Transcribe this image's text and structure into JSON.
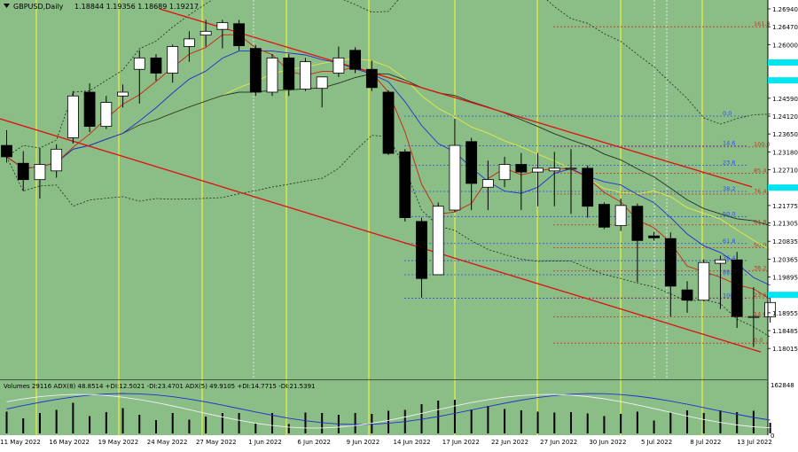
{
  "header": {
    "symbol": "GBPUSD,Daily",
    "ohlc": "1.18844 1.19356 1.18689 1.19217"
  },
  "indicator_header": "Volumes 29116  ADX(8) 48.8514 +DI:12.5021 -DI:23.4701  ADX(5) 49.9105 +DI:14.7715 -DI:21.5391",
  "colors": {
    "background": "#8bbd87",
    "panel_border": "#444444",
    "channel": "#e01010",
    "vline": "#f0f040",
    "bull": "#ffffff",
    "bear": "#000000",
    "price_badge": "#00e5ef",
    "fib_blue": "#3050e0",
    "fib_red": "#d03020",
    "fib_gray": "#5a7a9a"
  },
  "chart_data": {
    "type": "candlestick",
    "timeframe": "Daily",
    "price_axis": {
      "ticks": [
        1.2694,
        1.2647,
        1.26,
        1.2553,
        1.2506,
        1.2459,
        1.2412,
        1.2365,
        1.2318,
        1.2271,
        1.2224,
        1.2177,
        1.2131,
        1.2083,
        1.2036,
        1.1989,
        1.1942,
        1.1895,
        1.1848,
        1.1801
      ],
      "tick_labels": [
        "1.26940",
        "1.26470",
        "1.26000",
        "1.25530",
        "1.25060",
        "1.24590",
        "1.24120",
        "1.23650",
        "1.23180",
        "1.22710",
        "1.22240",
        "1.21775",
        "1.21305",
        "1.20835",
        "1.20365",
        "1.19895",
        "1.19425",
        "1.18955",
        "1.18485",
        "1.18015"
      ],
      "highlighted": [
        1.2553,
        1.2506,
        1.2224,
        1.1942
      ]
    },
    "date_axis": [
      "11 May 2022",
      "16 May 2022",
      "19 May 2022",
      "24 May 2022",
      "27 May 2022",
      "1 Jun 2022",
      "6 Jun 2022",
      "9 Jun 2022",
      "14 Jun 2022",
      "17 Jun 2022",
      "22 Jun 2022",
      "27 Jun 2022",
      "30 Jun 2022",
      "5 Jul 2022",
      "8 Jul 2022",
      "13 Jul 2022"
    ],
    "candles": [
      {
        "o": 1.2335,
        "h": 1.2375,
        "l": 1.229,
        "c": 1.2305
      },
      {
        "o": 1.2288,
        "h": 1.232,
        "l": 1.2215,
        "c": 1.2245
      },
      {
        "o": 1.2245,
        "h": 1.2328,
        "l": 1.2195,
        "c": 1.2285
      },
      {
        "o": 1.2268,
        "h": 1.2338,
        "l": 1.225,
        "c": 1.2325
      },
      {
        "o": 1.2355,
        "h": 1.2478,
        "l": 1.234,
        "c": 1.2465
      },
      {
        "o": 1.2475,
        "h": 1.2498,
        "l": 1.237,
        "c": 1.2385
      },
      {
        "o": 1.2385,
        "h": 1.2465,
        "l": 1.2378,
        "c": 1.2448
      },
      {
        "o": 1.2465,
        "h": 1.2495,
        "l": 1.2435,
        "c": 1.2475
      },
      {
        "o": 1.2535,
        "h": 1.2585,
        "l": 1.2445,
        "c": 1.2565
      },
      {
        "o": 1.2565,
        "h": 1.2575,
        "l": 1.2505,
        "c": 1.2525
      },
      {
        "o": 1.2525,
        "h": 1.26,
        "l": 1.25,
        "c": 1.2595
      },
      {
        "o": 1.2595,
        "h": 1.2635,
        "l": 1.2555,
        "c": 1.2615
      },
      {
        "o": 1.2625,
        "h": 1.2665,
        "l": 1.2595,
        "c": 1.2635
      },
      {
        "o": 1.264,
        "h": 1.2665,
        "l": 1.259,
        "c": 1.2658
      },
      {
        "o": 1.2655,
        "h": 1.2665,
        "l": 1.2585,
        "c": 1.2597
      },
      {
        "o": 1.259,
        "h": 1.2599,
        "l": 1.2465,
        "c": 1.2475
      },
      {
        "o": 1.2475,
        "h": 1.2575,
        "l": 1.2465,
        "c": 1.2565
      },
      {
        "o": 1.2565,
        "h": 1.2575,
        "l": 1.2465,
        "c": 1.2483
      },
      {
        "o": 1.2483,
        "h": 1.2565,
        "l": 1.2478,
        "c": 1.2555
      },
      {
        "o": 1.2485,
        "h": 1.2515,
        "l": 1.2435,
        "c": 1.2515
      },
      {
        "o": 1.2525,
        "h": 1.2595,
        "l": 1.2515,
        "c": 1.2565
      },
      {
        "o": 1.2585,
        "h": 1.2593,
        "l": 1.2525,
        "c": 1.2535
      },
      {
        "o": 1.2535,
        "h": 1.2558,
        "l": 1.2478,
        "c": 1.2487
      },
      {
        "o": 1.2475,
        "h": 1.248,
        "l": 1.231,
        "c": 1.2314
      },
      {
        "o": 1.2318,
        "h": 1.2325,
        "l": 1.2135,
        "c": 1.2145
      },
      {
        "o": 1.2135,
        "h": 1.2145,
        "l": 1.1935,
        "c": 1.1985
      },
      {
        "o": 1.1995,
        "h": 1.2185,
        "l": 1.1995,
        "c": 1.2175
      },
      {
        "o": 1.2165,
        "h": 1.2405,
        "l": 1.216,
        "c": 1.2335
      },
      {
        "o": 1.2345,
        "h": 1.2355,
        "l": 1.2165,
        "c": 1.2235
      },
      {
        "o": 1.2225,
        "h": 1.2295,
        "l": 1.2165,
        "c": 1.2245
      },
      {
        "o": 1.2245,
        "h": 1.2305,
        "l": 1.2225,
        "c": 1.2285
      },
      {
        "o": 1.2285,
        "h": 1.2315,
        "l": 1.2165,
        "c": 1.2265
      },
      {
        "o": 1.2265,
        "h": 1.2315,
        "l": 1.2175,
        "c": 1.2275
      },
      {
        "o": 1.2268,
        "h": 1.2318,
        "l": 1.2175,
        "c": 1.2275
      },
      {
        "o": 1.2275,
        "h": 1.2325,
        "l": 1.2155,
        "c": 1.2275
      },
      {
        "o": 1.2275,
        "h": 1.2282,
        "l": 1.2145,
        "c": 1.2175
      },
      {
        "o": 1.218,
        "h": 1.2185,
        "l": 1.2115,
        "c": 1.212
      },
      {
        "o": 1.2124,
        "h": 1.2195,
        "l": 1.211,
        "c": 1.2177
      },
      {
        "o": 1.2175,
        "h": 1.2182,
        "l": 1.1975,
        "c": 1.2085
      },
      {
        "o": 1.2097,
        "h": 1.2108,
        "l": 1.2085,
        "c": 1.2092
      },
      {
        "o": 1.209,
        "h": 1.2106,
        "l": 1.1885,
        "c": 1.1965
      },
      {
        "o": 1.1955,
        "h": 1.1978,
        "l": 1.1895,
        "c": 1.1928
      },
      {
        "o": 1.1928,
        "h": 1.2035,
        "l": 1.1925,
        "c": 1.2027
      },
      {
        "o": 1.2025,
        "h": 1.2045,
        "l": 1.1905,
        "c": 1.2034
      },
      {
        "o": 1.2034,
        "h": 1.2055,
        "l": 1.1855,
        "c": 1.1885
      },
      {
        "o": 1.1885,
        "h": 1.1962,
        "l": 1.1805,
        "c": 1.1885
      },
      {
        "o": 1.1884,
        "h": 1.1936,
        "l": 1.1869,
        "c": 1.1922
      }
    ],
    "fib_blue_labels": [
      "0.0",
      "14.6",
      "23.6",
      "38.2",
      "50.0",
      "61.8",
      "76.4",
      "88.4",
      "100.0"
    ],
    "fib_blue_values": [
      1.2412,
      1.2334,
      1.2283,
      1.2214,
      1.2148,
      1.2077,
      1.2032,
      1.1995,
      1.1933
    ],
    "fib_red_labels": [
      "161.8",
      "100.0",
      "85.4",
      "76.4",
      "61.8",
      "50.0",
      "38.2",
      "23.6",
      "14.6",
      "0.0"
    ],
    "fib_red_values": [
      1.2647,
      1.2331,
      1.2262,
      1.2207,
      1.2126,
      1.2066,
      1.2005,
      1.1934,
      1.1884,
      1.1815
    ],
    "volume_axis_label": "162848",
    "volume_axis_zero": "0",
    "volumes": [
      0.49,
      0.34,
      0.46,
      0.53,
      0.69,
      0.39,
      0.48,
      0.57,
      0.42,
      0.3,
      0.46,
      0.31,
      0.38,
      0.46,
      0.46,
      0.22,
      0.46,
      0.21,
      0.47,
      0.46,
      0.42,
      0.46,
      0.44,
      0.51,
      0.53,
      0.66,
      0.74,
      0.76,
      0.54,
      0.62,
      0.55,
      0.52,
      0.49,
      0.47,
      0.48,
      0.45,
      0.39,
      0.44,
      0.49,
      0.29,
      0.47,
      0.52,
      0.46,
      0.52,
      0.48,
      0.51,
      0.24
    ]
  }
}
